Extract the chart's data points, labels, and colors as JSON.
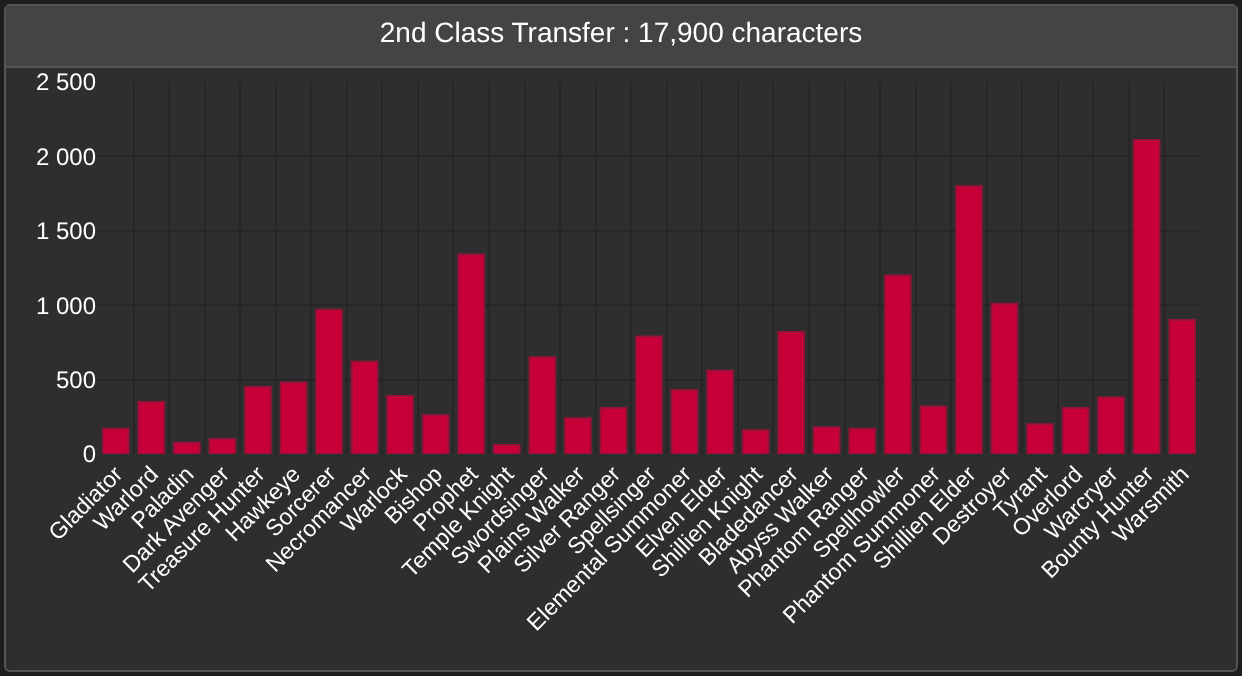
{
  "chart_data": {
    "type": "bar",
    "title": "2nd Class Transfer : 17,900 characters",
    "categories": [
      "Gladiator",
      "Warlord",
      "Paladin",
      "Dark Avenger",
      "Treasure Hunter",
      "Hawkeye",
      "Sorcerer",
      "Necromancer",
      "Warlock",
      "Bishop",
      "Prophet",
      "Temple Knight",
      "Swordsinger",
      "Plains Walker",
      "Silver Ranger",
      "Spellsinger",
      "Elemental Summoner",
      "Elven Elder",
      "Shillien Knight",
      "Bladedancer",
      "Abyss Walker",
      "Phantom Ranger",
      "Spellhowler",
      "Phantom Summoner",
      "Shillien Elder",
      "Destroyer",
      "Tyrant",
      "Overlord",
      "Warcryer",
      "Bounty Hunter",
      "Warsmith"
    ],
    "values": [
      170,
      350,
      75,
      100,
      450,
      480,
      970,
      620,
      390,
      260,
      1340,
      60,
      650,
      240,
      310,
      790,
      430,
      560,
      160,
      820,
      180,
      170,
      1200,
      320,
      1800,
      1010,
      200,
      310,
      380,
      2110,
      900
    ],
    "color": "#c8003a",
    "ylim": [
      0,
      2500
    ],
    "yticks": [
      0,
      {
        "value": 500,
        "label": "500"
      },
      {
        "value": 1000,
        "label": "1 000"
      },
      {
        "value": 1500,
        "label": "1 500"
      },
      {
        "value": 2000,
        "label": "2 000"
      },
      {
        "value": 2500,
        "label": "2 500"
      }
    ],
    "grid": true
  }
}
